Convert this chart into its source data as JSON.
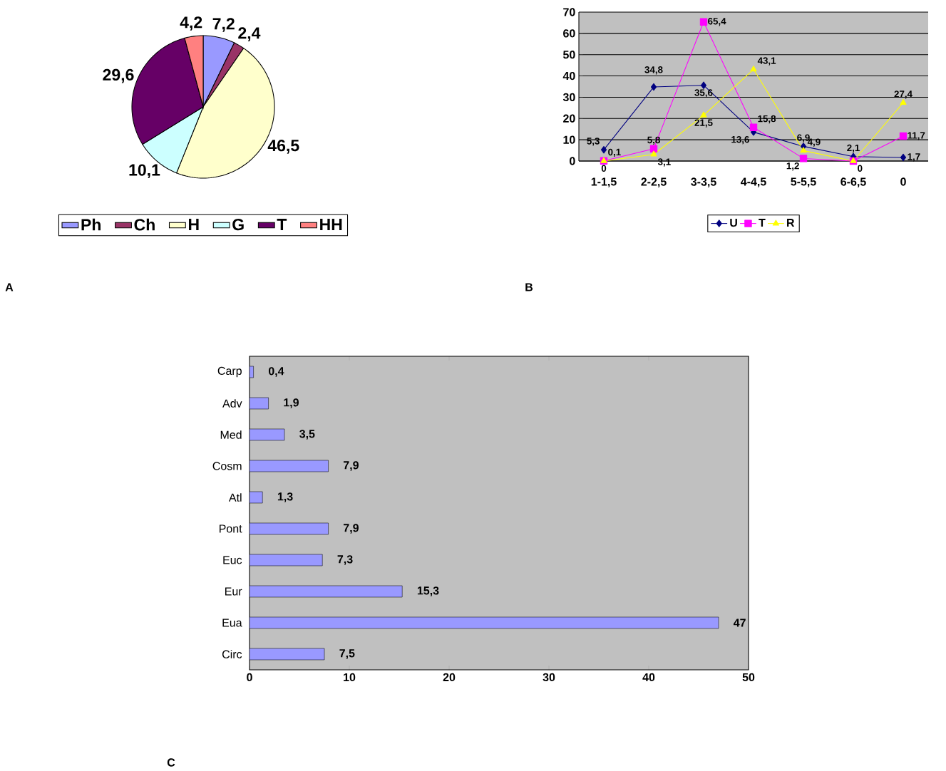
{
  "chart_data": [
    {
      "type": "pie",
      "categories": [
        "Ph",
        "Ch",
        "H",
        "G",
        "T",
        "HH"
      ],
      "values": [
        7.2,
        2.4,
        46.5,
        10.1,
        29.6,
        4.2
      ],
      "colors": [
        "#9999ff",
        "#993366",
        "#ffffcc",
        "#ccffff",
        "#660066",
        "#ff8080"
      ],
      "value_labels": [
        "7,2",
        "2,4",
        "46,5",
        "10,1",
        "29,6",
        "4,2"
      ],
      "legend": "bottom",
      "annotations": [
        "A"
      ]
    },
    {
      "type": "line",
      "categories": [
        "1-1,5",
        "2-2,5",
        "3-3,5",
        "4-4,5",
        "5-5,5",
        "6-6,5",
        "0"
      ],
      "ylim": [
        0,
        70
      ],
      "yticks": [
        0,
        10,
        20,
        30,
        40,
        50,
        60,
        70
      ],
      "grid": "y",
      "legend": "bottom",
      "annotations": [
        "B"
      ],
      "series": [
        {
          "name": "U",
          "color": "#000080",
          "marker": "diamond",
          "values": [
            5.3,
            34.8,
            35.6,
            13.6,
            6.9,
            2.1,
            1.7
          ],
          "value_labels": [
            "5,3",
            "34,8",
            "35,6",
            "13,6",
            "6,9",
            "2,1",
            "1,7"
          ]
        },
        {
          "name": "T",
          "color": "#ff00ff",
          "marker": "square",
          "values": [
            0.1,
            5.8,
            65.4,
            15.8,
            1.2,
            0,
            11.7
          ],
          "value_labels": [
            "0,1",
            "5,8",
            "65,4",
            "15,8",
            "1,2",
            "0",
            "11,7"
          ]
        },
        {
          "name": "R",
          "color": "#ffff00",
          "marker": "triangle",
          "values": [
            0,
            3.1,
            21.5,
            43.1,
            4.9,
            0,
            27.4
          ],
          "value_labels": [
            "0",
            "3,1",
            "21,5",
            "43,1",
            "4,9",
            null,
            "27,4"
          ]
        }
      ]
    },
    {
      "type": "bar",
      "orientation": "horizontal",
      "categories": [
        "Carp",
        "Adv",
        "Med",
        "Cosm",
        "Atl",
        "Pont",
        "Euc",
        "Eur",
        "Eua",
        "Circ"
      ],
      "values": [
        0.4,
        1.9,
        3.5,
        7.9,
        1.3,
        7.9,
        7.3,
        15.3,
        47,
        7.5
      ],
      "value_labels": [
        "0,4",
        "1,9",
        "3,5",
        "7,9",
        "1,3",
        "7,9",
        "7,3",
        "15,3",
        "47",
        "7,5"
      ],
      "color": "#9999ff",
      "xlim": [
        0,
        50
      ],
      "xticks": [
        0,
        10,
        20,
        30,
        40,
        50
      ],
      "annotations": [
        "C"
      ]
    }
  ]
}
